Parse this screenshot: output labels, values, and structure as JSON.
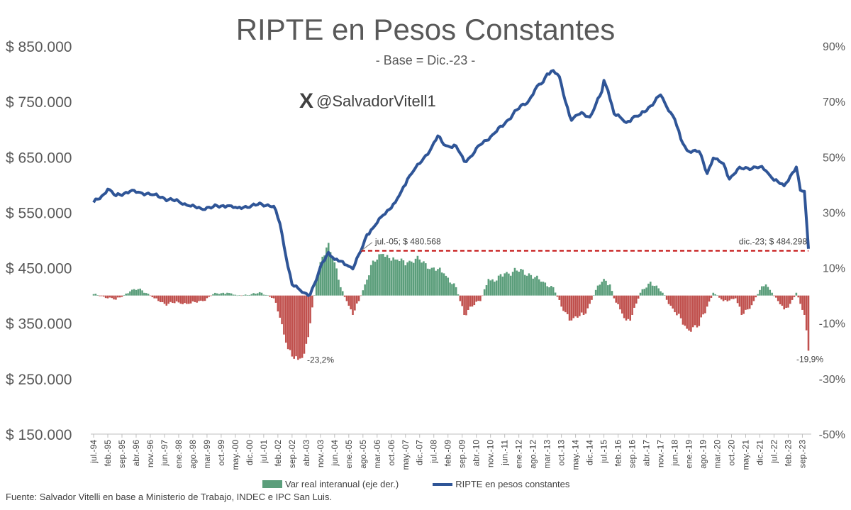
{
  "header": {
    "title": "RIPTE en Pesos Constantes",
    "subtitle": "- Base = Dic.-23 -",
    "handle": "@SalvadorVitell1",
    "logo_glyph": "X"
  },
  "source": "Fuente: Salvador Vitelli en base a Ministerio de Trabajo, INDEC e IPC San Luis.",
  "legend": {
    "bar_label": "Var real interanual (eje der.)",
    "line_label": "RIPTE en pesos constantes"
  },
  "colors": {
    "line": "#2f5597",
    "bar_positive": "#5b9e7b",
    "bar_negative": "#c0504d",
    "reference_line": "#c00000"
  },
  "chart_data": {
    "type": "line+bar",
    "title": "RIPTE en Pesos Constantes",
    "subtitle": "- Base = Dic.-23 -",
    "y_left": {
      "min": 150000,
      "max": 850000,
      "ticks": [
        "$ 150.000",
        "$ 250.000",
        "$ 350.000",
        "$ 450.000",
        "$ 550.000",
        "$ 650.000",
        "$ 750.000",
        "$ 850.000"
      ]
    },
    "y_right": {
      "min": -50,
      "max": 90,
      "unit": "%",
      "ticks": [
        "-50%",
        "-30%",
        "-10%",
        "10%",
        "30%",
        "50%",
        "70%",
        "90%"
      ]
    },
    "x_labels": [
      "jul.-94",
      "feb.-95",
      "sep.-95",
      "abr.-96",
      "nov.-96",
      "jun.-97",
      "ene.-98",
      "ago.-98",
      "mar.-99",
      "oct.-99",
      "may.-00",
      "dic.-00",
      "jul.-01",
      "feb.-02",
      "sep.-02",
      "abr.-03",
      "nov.-03",
      "jun.-04",
      "ene.-05",
      "ago.-05",
      "mar.-06",
      "oct.-06",
      "may.-07",
      "dic.-07",
      "jul.-08",
      "feb.-09",
      "sep.-09",
      "abr.-10",
      "nov.-10",
      "jun.-11",
      "ene.-12",
      "ago.-12",
      "mar.-13",
      "oct.-13",
      "may.-14",
      "dic.-14",
      "jul.-15",
      "feb.-16",
      "sep.-16",
      "abr.-17",
      "nov.-17",
      "jun.-18",
      "ene.-19",
      "ago.-19",
      "mar.-20",
      "oct.-20",
      "may.-21",
      "dic.-21",
      "jul.-22",
      "feb.-23",
      "sep.-23"
    ],
    "x_start": "1994-07",
    "x_end": "2023-12",
    "series": [
      {
        "name": "RIPTE en pesos constantes",
        "axis": "left",
        "type": "line",
        "points": [
          [
            "1994-07",
            568000
          ],
          [
            "1995-01",
            585000
          ],
          [
            "1995-02",
            592000
          ],
          [
            "1995-06",
            580000
          ],
          [
            "1996-01",
            588000
          ],
          [
            "1996-06",
            586000
          ],
          [
            "1997-01",
            582000
          ],
          [
            "1997-06",
            575000
          ],
          [
            "1998-01",
            570000
          ],
          [
            "1998-06",
            562000
          ],
          [
            "1998-12",
            557000
          ],
          [
            "1999-06",
            560000
          ],
          [
            "2000-01",
            562000
          ],
          [
            "2000-06",
            558000
          ],
          [
            "2001-01",
            562000
          ],
          [
            "2001-06",
            565000
          ],
          [
            "2001-12",
            561000
          ],
          [
            "2002-03",
            530000
          ],
          [
            "2002-06",
            470000
          ],
          [
            "2002-09",
            420000
          ],
          [
            "2002-12",
            413000
          ],
          [
            "2003-03",
            405000
          ],
          [
            "2003-06",
            402000
          ],
          [
            "2003-09",
            428000
          ],
          [
            "2003-12",
            460000
          ],
          [
            "2004-03",
            478000
          ],
          [
            "2004-06",
            465000
          ],
          [
            "2004-09",
            462000
          ],
          [
            "2004-12",
            455000
          ],
          [
            "2005-03",
            448000
          ],
          [
            "2005-07",
            480568
          ],
          [
            "2005-10",
            510000
          ],
          [
            "2006-01",
            522000
          ],
          [
            "2006-06",
            545000
          ],
          [
            "2006-12",
            568000
          ],
          [
            "2007-03",
            588000
          ],
          [
            "2007-06",
            610000
          ],
          [
            "2007-09",
            625000
          ],
          [
            "2008-01",
            642000
          ],
          [
            "2008-06",
            668000
          ],
          [
            "2008-09",
            688000
          ],
          [
            "2008-12",
            672000
          ],
          [
            "2009-03",
            668000
          ],
          [
            "2009-06",
            670000
          ],
          [
            "2009-10",
            642000
          ],
          [
            "2010-01",
            650000
          ],
          [
            "2010-06",
            672000
          ],
          [
            "2010-12",
            690000
          ],
          [
            "2011-06",
            710000
          ],
          [
            "2011-12",
            735000
          ],
          [
            "2012-06",
            752000
          ],
          [
            "2012-10",
            778000
          ],
          [
            "2013-01",
            785000
          ],
          [
            "2013-03",
            800000
          ],
          [
            "2013-06",
            806000
          ],
          [
            "2013-09",
            795000
          ],
          [
            "2013-12",
            750000
          ],
          [
            "2014-03",
            716000
          ],
          [
            "2014-06",
            726000
          ],
          [
            "2014-09",
            728000
          ],
          [
            "2014-12",
            722000
          ],
          [
            "2015-03",
            745000
          ],
          [
            "2015-06",
            768000
          ],
          [
            "2015-07",
            788000
          ],
          [
            "2015-09",
            770000
          ],
          [
            "2015-12",
            728000
          ],
          [
            "2016-03",
            722000
          ],
          [
            "2016-06",
            712000
          ],
          [
            "2016-09",
            720000
          ],
          [
            "2017-01",
            726000
          ],
          [
            "2017-06",
            742000
          ],
          [
            "2017-11",
            762000
          ],
          [
            "2018-01",
            748000
          ],
          [
            "2018-06",
            718000
          ],
          [
            "2018-09",
            682000
          ],
          [
            "2018-12",
            662000
          ],
          [
            "2019-06",
            660000
          ],
          [
            "2019-10",
            620000
          ],
          [
            "2020-01",
            648000
          ],
          [
            "2020-06",
            638000
          ],
          [
            "2020-09",
            610000
          ],
          [
            "2021-01",
            628000
          ],
          [
            "2021-06",
            630000
          ],
          [
            "2021-12",
            632000
          ],
          [
            "2022-03",
            625000
          ],
          [
            "2022-06",
            612000
          ],
          [
            "2022-09",
            605000
          ],
          [
            "2022-12",
            598000
          ],
          [
            "2023-03",
            615000
          ],
          [
            "2023-06",
            632000
          ],
          [
            "2023-08",
            590000
          ],
          [
            "2023-10",
            588000
          ],
          [
            "2023-12",
            484298
          ]
        ]
      },
      {
        "name": "Var real interanual (eje der.)",
        "axis": "right",
        "type": "bar",
        "resolution": "monthly",
        "points": [
          [
            "1994-07",
            0.5
          ],
          [
            "1995-06",
            -1.5
          ],
          [
            "1996-01",
            1.5
          ],
          [
            "1996-06",
            2.5
          ],
          [
            "1997-01",
            -1.0
          ],
          [
            "1997-06",
            -3.0
          ],
          [
            "1998-01",
            -2.5
          ],
          [
            "1998-06",
            -3.0
          ],
          [
            "1999-01",
            -2.0
          ],
          [
            "1999-06",
            0.5
          ],
          [
            "2000-01",
            1.0
          ],
          [
            "2000-06",
            0.0
          ],
          [
            "2001-01",
            0.5
          ],
          [
            "2001-06",
            1.0
          ],
          [
            "2001-12",
            -1.0
          ],
          [
            "2002-03",
            -8.0
          ],
          [
            "2002-06",
            -17.0
          ],
          [
            "2002-09",
            -22.0
          ],
          [
            "2002-12",
            -23.2
          ],
          [
            "2003-03",
            -21.0
          ],
          [
            "2003-06",
            -10.0
          ],
          [
            "2003-09",
            5.0
          ],
          [
            "2003-12",
            14.0
          ],
          [
            "2004-03",
            19.0
          ],
          [
            "2004-06",
            12.0
          ],
          [
            "2004-09",
            3.0
          ],
          [
            "2004-12",
            -2.0
          ],
          [
            "2005-03",
            -7.0
          ],
          [
            "2005-06",
            -2.0
          ],
          [
            "2005-09",
            4.0
          ],
          [
            "2005-12",
            11.0
          ],
          [
            "2006-06",
            15.0
          ],
          [
            "2006-12",
            13.0
          ],
          [
            "2007-06",
            12.0
          ],
          [
            "2007-12",
            13.0
          ],
          [
            "2008-06",
            10.0
          ],
          [
            "2008-12",
            8.0
          ],
          [
            "2009-06",
            3.0
          ],
          [
            "2009-08",
            -2.0
          ],
          [
            "2009-10",
            -7.0
          ],
          [
            "2010-01",
            -4.0
          ],
          [
            "2010-06",
            -2.0
          ],
          [
            "2010-10",
            6.0
          ],
          [
            "2011-01",
            5.0
          ],
          [
            "2011-06",
            8.0
          ],
          [
            "2011-12",
            9.0
          ],
          [
            "2012-06",
            8.0
          ],
          [
            "2012-12",
            5.0
          ],
          [
            "2013-06",
            3.0
          ],
          [
            "2013-10",
            -4.0
          ],
          [
            "2014-03",
            -9.0
          ],
          [
            "2014-06",
            -8.0
          ],
          [
            "2014-09",
            -7.0
          ],
          [
            "2014-12",
            -3.0
          ],
          [
            "2015-03",
            2.0
          ],
          [
            "2015-07",
            6.0
          ],
          [
            "2015-10",
            4.0
          ],
          [
            "2015-12",
            -1.0
          ],
          [
            "2016-03",
            -5.0
          ],
          [
            "2016-06",
            -9.0
          ],
          [
            "2016-09",
            -7.0
          ],
          [
            "2017-01",
            1.0
          ],
          [
            "2017-06",
            5.0
          ],
          [
            "2017-12",
            1.0
          ],
          [
            "2018-06",
            -6.0
          ],
          [
            "2018-12",
            -12.0
          ],
          [
            "2019-06",
            -11.0
          ],
          [
            "2019-10",
            -4.0
          ],
          [
            "2020-01",
            1.0
          ],
          [
            "2020-06",
            -2.0
          ],
          [
            "2020-12",
            -1.0
          ],
          [
            "2021-03",
            -7.0
          ],
          [
            "2021-06",
            -5.0
          ],
          [
            "2021-09",
            -2.0
          ],
          [
            "2021-12",
            2.0
          ],
          [
            "2022-03",
            4.0
          ],
          [
            "2022-06",
            1.0
          ],
          [
            "2022-09",
            -2.0
          ],
          [
            "2022-12",
            -5.0
          ],
          [
            "2023-03",
            -3.0
          ],
          [
            "2023-06",
            1.0
          ],
          [
            "2023-08",
            -3.0
          ],
          [
            "2023-10",
            -7.0
          ],
          [
            "2023-12",
            -19.9
          ]
        ]
      }
    ],
    "reference_line": {
      "value": 480568,
      "from": "2005-07",
      "to": "2023-12",
      "style": "dashed"
    },
    "annotations": {
      "start": "jul.-05;  $ 480.568",
      "end": "dic.-23;  $ 484.298",
      "min_label": "-23,2%",
      "last_label": "-19,9%"
    },
    "grid": false,
    "legend_position": "bottom"
  }
}
